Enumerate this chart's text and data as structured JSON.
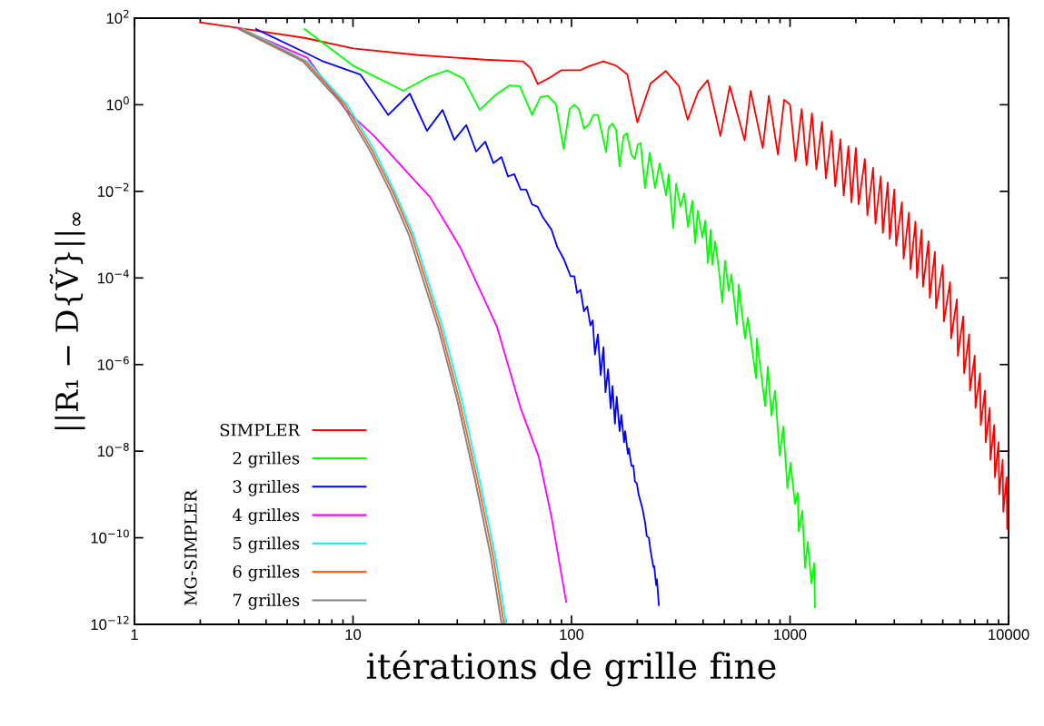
{
  "chart_data": {
    "type": "line",
    "xlabel": "itérations de grille fine",
    "ylabel": "||R₁ − D{Ṽ}||$_{∞}$",
    "log": "xy",
    "grid": false,
    "legend": "bottom left",
    "line_style": "solid",
    "marker": "none",
    "xlim": [
      1,
      10000
    ],
    "xticks": [
      1,
      10,
      100,
      1000,
      10000
    ],
    "ylim": [
      1e-12,
      100
    ],
    "yticks": [
      {
        "value": 1e-12,
        "label": "10$^{−12}$"
      },
      {
        "value": 1e-10,
        "label": "10$^{−10}$"
      },
      {
        "value": 1e-08,
        "label": "10$^{−8}$"
      },
      {
        "value": 1e-06,
        "label": "10$^{−6}$"
      },
      {
        "value": 0.0001,
        "label": "10$^{−4}$"
      },
      {
        "value": 0.01,
        "label": "10$^{−2}$"
      },
      {
        "value": 1,
        "label": "10$^{0}$"
      },
      {
        "value": 100,
        "label": "10$^{2}$"
      }
    ],
    "annotations": [
      "MG-SIMPLER"
    ],
    "series": [
      {
        "name": "SIMPLER",
        "color": "#ff0000",
        "x": [
          2,
          6,
          10,
          20,
          40,
          60,
          65,
          70,
          80,
          90,
          110,
          120,
          140,
          160,
          180,
          200,
          230,
          270,
          310,
          340,
          380,
          420,
          480,
          530,
          620,
          660,
          750,
          800,
          880,
          940,
          1000,
          1060,
          1130,
          1190,
          1260,
          1320,
          1400,
          1460,
          1550,
          1610,
          1700,
          1760,
          1850,
          1910,
          2000,
          2060,
          2200,
          2260,
          2400,
          2460,
          2600,
          2660,
          2800,
          2860,
          3000,
          3060,
          3250,
          3310,
          3500,
          3560,
          3750,
          3810,
          4000,
          4060,
          4300,
          4360,
          4600,
          4660,
          5000,
          5060,
          5400,
          5460,
          5800,
          5860,
          6200,
          6260,
          6600,
          6660,
          7000,
          7060,
          7400,
          7460,
          7800,
          7860,
          8200,
          8260,
          8600,
          8660,
          9000,
          9060,
          9400,
          9460,
          9800,
          9860,
          10000
        ],
        "values": [
          80,
          35,
          20,
          14,
          11,
          10,
          7,
          3,
          4.3,
          6.3,
          6.3,
          7.7,
          10,
          8,
          5,
          0.39,
          3.1,
          6,
          2.7,
          0.45,
          2,
          3.7,
          0.19,
          2.7,
          0.15,
          2.1,
          0.1,
          1.6,
          0.071,
          1.3,
          1.0,
          0.05,
          0.8,
          0.04,
          0.63,
          0.032,
          0.4,
          0.02,
          0.25,
          0.013,
          0.16,
          0.008,
          0.11,
          0.0056,
          0.1,
          0.005,
          0.056,
          0.0028,
          0.035,
          0.0018,
          0.022,
          0.0011,
          0.016,
          0.0008,
          0.011,
          0.00056,
          0.0056,
          0.00028,
          0.0032,
          0.00016,
          0.002,
          0.0001,
          0.0013,
          6.3e-05,
          0.0007,
          3.5e-05,
          0.0004,
          2e-05,
          0.0002,
          1e-05,
          8e-05,
          4e-06,
          3.2e-05,
          1.6e-06,
          1.3e-05,
          6.3e-07,
          5e-06,
          2.5e-07,
          1.6e-06,
          1e-07,
          6.3e-07,
          4e-08,
          2.5e-07,
          1.6e-08,
          1e-07,
          6.3e-09,
          4e-08,
          2.5e-09,
          1.6e-08,
          1e-09,
          6.3e-09,
          4e-10,
          2.5e-09,
          1.6e-10,
          2e-10
        ]
      },
      {
        "name": "2 grilles",
        "color": "#00ff00",
        "x": [
          6,
          10,
          17,
          22,
          27,
          32,
          38,
          45,
          52,
          58,
          66,
          72,
          78,
          85,
          92,
          98,
          103,
          108,
          114,
          120,
          126,
          132,
          144,
          148,
          154,
          160,
          166,
          173,
          179,
          188,
          195,
          201,
          207,
          217,
          228,
          241,
          253,
          271,
          278,
          292,
          301,
          315,
          328,
          341,
          357,
          368,
          378,
          397,
          409,
          421,
          433,
          441,
          454,
          472,
          490,
          504,
          524,
          539,
          571,
          582,
          622,
          641,
          699,
          704,
          769,
          791,
          822,
          854,
          896,
          931,
          973,
          1005,
          1054,
          1084,
          1096,
          1138,
          1172,
          1205,
          1253,
          1289,
          1300
        ],
        "values": [
          56,
          8,
          2.1,
          4.3,
          6.2,
          4,
          0.76,
          1.7,
          2.8,
          2.7,
          0.58,
          1.5,
          1.6,
          1.0,
          0.095,
          0.8,
          1.0,
          0.8,
          0.28,
          0.35,
          0.58,
          0.58,
          0.08,
          0.3,
          0.37,
          0.26,
          0.038,
          0.19,
          0.22,
          0.07,
          0.056,
          0.12,
          0.13,
          0.012,
          0.078,
          0.012,
          0.044,
          0.008,
          0.025,
          0.0014,
          0.015,
          0.0044,
          0.009,
          0.0015,
          0.006,
          0.00063,
          0.0036,
          0.00085,
          0.0021,
          0.00022,
          0.0013,
          0.0002,
          0.0007,
          0.00016,
          2.7e-05,
          0.00025,
          5e-05,
          0.00012,
          8.5e-06,
          7e-05,
          4e-06,
          1.2e-05,
          4.8e-07,
          4e-06,
          1.1e-07,
          9e-07,
          6.6e-08,
          2.5e-07,
          8e-09,
          3.7e-08,
          1.4e-09,
          5.4e-09,
          6e-10,
          1.1e-09,
          1.4e-10,
          4.2e-10,
          2e-11,
          8e-11,
          8.7e-12,
          2.6e-11,
          2.5e-12
        ]
      },
      {
        "name": "3 grilles",
        "color": "#0000ff",
        "x": [
          3.6,
          5.9,
          7.3,
          10.8,
          14.5,
          18.2,
          21.8,
          25.7,
          29.1,
          33,
          36.6,
          40.3,
          43.9,
          47.8,
          51.2,
          54.7,
          58.5,
          62,
          66,
          70,
          74,
          81,
          86,
          92,
          99,
          103,
          106,
          110,
          114,
          118,
          122,
          125,
          128,
          132,
          136,
          140,
          143,
          147,
          151,
          154,
          158,
          161,
          166,
          169,
          174,
          176,
          181,
          183,
          188,
          192,
          195,
          199,
          203,
          211,
          217,
          221,
          226,
          230,
          237,
          239,
          244,
          246,
          251
        ],
        "values": [
          56,
          17,
          10,
          5,
          0.58,
          1.8,
          0.25,
          0.76,
          0.155,
          0.34,
          0.083,
          0.14,
          0.045,
          0.062,
          0.022,
          0.025,
          0.011,
          0.011,
          0.005,
          0.0044,
          0.0025,
          0.0013,
          0.00052,
          0.00028,
          0.00011,
          0.00011,
          4.5e-05,
          5.3e-05,
          1.7e-05,
          2.2e-05,
          8e-06,
          1.05e-05,
          1.7e-06,
          5e-06,
          5.7e-07,
          2.5e-06,
          2.3e-07,
          7.8e-07,
          9.7e-08,
          3.2e-07,
          4.3e-08,
          1.8e-07,
          2.9e-08,
          6.9e-08,
          1.6e-08,
          2.9e-08,
          8.7e-09,
          1.15e-08,
          4.6e-09,
          4.6e-09,
          2e-09,
          1.8e-09,
          9.8e-10,
          4.8e-10,
          2.3e-10,
          1.1e-10,
          1e-10,
          5e-11,
          2.1e-11,
          2.2e-11,
          8e-12,
          1.1e-11,
          2.8e-12
        ]
      },
      {
        "name": "4 grilles",
        "color": "#ff00ff",
        "x": [
          3,
          6.2,
          9.2,
          12.5,
          18,
          22.5,
          31,
          45.6,
          58.5,
          70.8,
          81,
          94.5
        ],
        "values": [
          59,
          12,
          0.79,
          0.19,
          0.025,
          0.0074,
          0.0005,
          7.4e-06,
          9.8e-08,
          7.4e-09,
          3e-10,
          3.3e-12
        ]
      },
      {
        "name": "5 grilles",
        "color": "#00ffff",
        "x": [
          3.15,
          6.2,
          9.45,
          12.5,
          15.6,
          18.9,
          25.7,
          31.4,
          38.1,
          44.8,
          50.3
        ],
        "values": [
          56,
          10,
          0.98,
          0.091,
          0.0093,
          0.001,
          7.4e-06,
          1.6e-07,
          2e-09,
          3.7e-11,
          1e-12
        ]
      },
      {
        "name": "6 grilles",
        "color": "#ff6020",
        "x": [
          3.08,
          6.05,
          9.23,
          12.2,
          15.3,
          18.5,
          25.1,
          30.6,
          37.2,
          43.8,
          49.1
        ],
        "values": [
          56,
          10,
          0.98,
          0.091,
          0.0093,
          0.001,
          7.4e-06,
          1.6e-07,
          2e-09,
          3.7e-11,
          1e-12
        ]
      },
      {
        "name": "7 grilles",
        "color": "#808080",
        "x": [
          3,
          5.9,
          9,
          11.9,
          14.9,
          18,
          24.5,
          29.9,
          36.3,
          42.7,
          47.9
        ],
        "values": [
          56,
          10,
          0.98,
          0.091,
          0.0093,
          0.001,
          7.4e-06,
          1.6e-07,
          2e-09,
          3.7e-11,
          1e-12
        ]
      }
    ]
  }
}
